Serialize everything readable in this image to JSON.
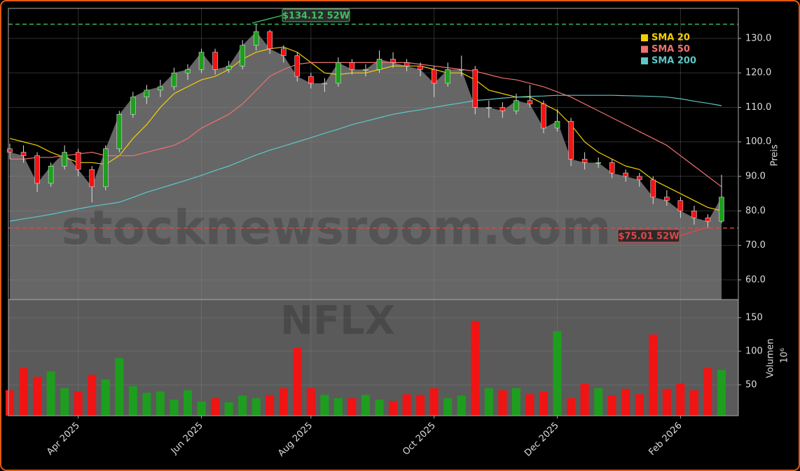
{
  "chart_data": {
    "type": "candlestick",
    "watermark": "stocknewsroom.com",
    "ticker": "NFLX",
    "categories": [
      null,
      null,
      null,
      null,
      null,
      "Apr 2025",
      null,
      null,
      null,
      null,
      null,
      null,
      null,
      null,
      "Jun 2025",
      null,
      null,
      null,
      null,
      null,
      null,
      null,
      "Aug 2025",
      null,
      null,
      null,
      null,
      null,
      null,
      null,
      null,
      "Oct 2025",
      null,
      null,
      null,
      null,
      null,
      null,
      null,
      null,
      "Dec 2025",
      null,
      null,
      null,
      null,
      null,
      null,
      null,
      null,
      "Feb 2026",
      null,
      null,
      null
    ],
    "open": [
      98,
      97,
      96,
      88,
      93,
      97,
      92,
      87,
      98,
      108,
      113,
      115,
      116,
      120,
      121,
      126,
      121,
      122,
      128,
      132,
      127,
      125,
      119,
      117,
      117,
      123,
      121,
      121,
      124,
      123,
      122,
      121,
      117,
      121,
      121,
      110,
      110,
      109,
      112,
      111,
      104,
      106,
      95,
      94,
      94,
      91,
      90,
      89,
      84,
      83,
      80,
      78,
      77
    ],
    "high": [
      99.5,
      99,
      97,
      94,
      99,
      98,
      93,
      99,
      109,
      114.5,
      116.5,
      118,
      121.5,
      122.5,
      127,
      127,
      123.5,
      129.5,
      134.12,
      132.5,
      128,
      126,
      120,
      118.5,
      124.5,
      124,
      122.5,
      126.5,
      126,
      124,
      123,
      122,
      123,
      125,
      122,
      112,
      111.5,
      114,
      116.5,
      112,
      109.5,
      107,
      97,
      95.5,
      95,
      92,
      91,
      90,
      86,
      84,
      81.5,
      79,
      90.5
    ],
    "low": [
      95,
      94,
      85.5,
      87,
      92,
      90,
      82.5,
      86,
      97,
      107,
      111,
      113,
      115,
      118,
      120,
      119.5,
      120,
      121,
      126.5,
      125.5,
      123,
      117.5,
      115.5,
      114.5,
      116,
      119.5,
      119,
      120,
      121.5,
      120.5,
      119,
      113,
      116,
      119,
      108,
      107,
      107,
      108,
      110,
      102.5,
      103,
      93,
      92,
      92.5,
      89.5,
      88.5,
      87,
      82,
      81.5,
      78,
      76,
      75.01,
      76.5
    ],
    "close": [
      97,
      96,
      88,
      93,
      97,
      92,
      87,
      98,
      108,
      113,
      115,
      116,
      120,
      121,
      126,
      121,
      122,
      128,
      132,
      127,
      125,
      119,
      117,
      117,
      123,
      121,
      121,
      124,
      123,
      122,
      121,
      117,
      121,
      121,
      110,
      110,
      109,
      112,
      111,
      104,
      106,
      95,
      94,
      94,
      91,
      90,
      89,
      84,
      83,
      80,
      78,
      77,
      84
    ],
    "volume": [
      42,
      75,
      62,
      70,
      45,
      40,
      65,
      58,
      90,
      48,
      38,
      40,
      28,
      42,
      25,
      30,
      24,
      34,
      30,
      35,
      45,
      105,
      45,
      35,
      30,
      30,
      35,
      28,
      26,
      36,
      35,
      45,
      30,
      34,
      145,
      45,
      42,
      45,
      36,
      40,
      130,
      30,
      52,
      45,
      34,
      44,
      36,
      125,
      44,
      52,
      42,
      75,
      72
    ],
    "up_color": "#1e9e1e",
    "down_color": "#f01414",
    "area_color": "#666666",
    "sma": [
      {
        "name": "SMA 20",
        "color": "#f5d000",
        "values": [
          101,
          100,
          99,
          97,
          95.5,
          94,
          94,
          93.5,
          96,
          101,
          105,
          110,
          114,
          116,
          118,
          119,
          121,
          124,
          126,
          127,
          127.5,
          126,
          123,
          120,
          119.5,
          120,
          120,
          121,
          122,
          122,
          122,
          121,
          120,
          120,
          118,
          115,
          114,
          113,
          113,
          111,
          109,
          105,
          100,
          97,
          95,
          93,
          92,
          89,
          87,
          85,
          83,
          81,
          80
        ]
      },
      {
        "name": "SMA 50",
        "color": "#f07070",
        "values": [
          95,
          95,
          95.5,
          95.5,
          96,
          96.5,
          97,
          96,
          96,
          96,
          97,
          98,
          99,
          101,
          104,
          106,
          108,
          111,
          115,
          119,
          121,
          122.5,
          123,
          123,
          123,
          123,
          123,
          123,
          123,
          123,
          122.5,
          122,
          121.5,
          121,
          120.5,
          119.5,
          118.5,
          118,
          117,
          116,
          114.5,
          113,
          111,
          109,
          107,
          105,
          103,
          101,
          99,
          96,
          93,
          90,
          87
        ]
      },
      {
        "name": "SMA 200",
        "color": "#5cc8c8",
        "values": [
          77,
          77.7,
          78.3,
          79,
          79.8,
          80.6,
          81.3,
          81.9,
          82.5,
          83.9,
          85.4,
          86.6,
          87.8,
          89,
          90.3,
          91.7,
          93,
          94.6,
          96.2,
          97.6,
          98.8,
          100,
          101.2,
          102.5,
          103.7,
          105,
          106,
          107,
          108,
          108.7,
          109.3,
          110,
          110.7,
          111.3,
          112,
          112.3,
          112.7,
          113,
          113.2,
          113.3,
          113.5,
          113.5,
          113.5,
          113.5,
          113.5,
          113.4,
          113.3,
          113.2,
          113,
          112.5,
          111.8,
          111.2,
          110.5
        ]
      }
    ],
    "annotations": [
      {
        "text": "$134.12 52W",
        "value": 134.12,
        "color": "#3cc060"
      },
      {
        "text": "$75.01 52W",
        "value": 75.01,
        "color": "#e04848"
      }
    ],
    "ylabel": "Preis",
    "ylim": [
      54.3,
      138.7
    ],
    "yticks": [
      {
        "value": 60,
        "label": "60.0"
      },
      {
        "value": 70,
        "label": "70.0"
      },
      {
        "value": 80,
        "label": "80.0"
      },
      {
        "value": 90,
        "label": "90.0"
      },
      {
        "value": 100,
        "label": "100.0"
      },
      {
        "value": 110,
        "label": "110.0"
      },
      {
        "value": 120,
        "label": "120.0"
      },
      {
        "value": 130,
        "label": "130.0"
      }
    ],
    "y2label": "Volumen",
    "y2unit": "10⁶",
    "y2lim": [
      4,
      177
    ],
    "y2ticks": [
      50,
      100,
      150
    ],
    "grid": true
  }
}
